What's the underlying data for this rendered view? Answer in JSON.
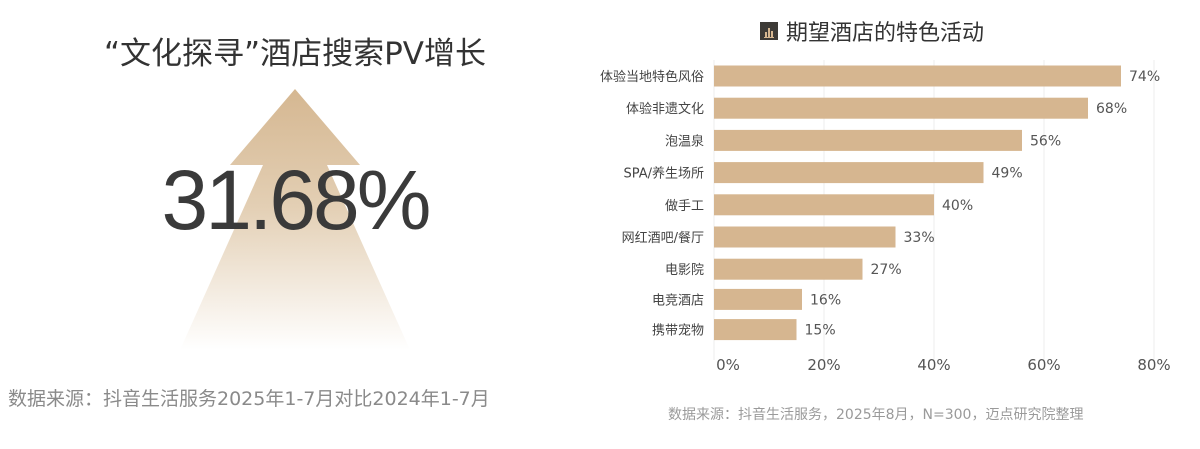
{
  "left_panel": {
    "title": "“文化探寻”酒店搜索PV增长",
    "big_value": "31.68%",
    "source": "数据来源：抖音生活服务2025年1-7月对比2024年1-7月",
    "arrow_color": "#d5b791"
  },
  "chart_data": {
    "type": "bar",
    "orientation": "horizontal",
    "title": "期望酒店的特色活动",
    "title_icon": "bar-chart-icon",
    "categories": [
      "体验当地特色风俗",
      "体验非遗文化",
      "泡温泉",
      "SPA/养生场所",
      "做手工",
      "网红酒吧/餐厅",
      "电影院",
      "电竞酒店",
      "携带宠物"
    ],
    "values": [
      74,
      68,
      56,
      49,
      40,
      33,
      27,
      16,
      15
    ],
    "data_labels": [
      "74%",
      "68%",
      "56%",
      "49%",
      "40%",
      "33%",
      "27%",
      "16%",
      "15%"
    ],
    "xlim": [
      0,
      80
    ],
    "x_ticks": [
      "0%",
      "20%",
      "40%",
      "60%",
      "80%"
    ],
    "grid": true,
    "bar_color": "#d6b690",
    "source": "数据来源：抖音生活服务，2025年8月，N=300，迈点研究院整理"
  }
}
